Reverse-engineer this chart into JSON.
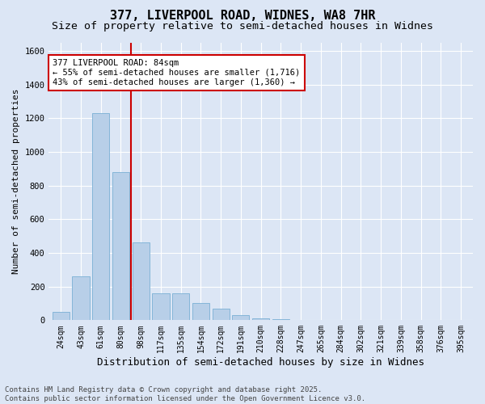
{
  "title_line1": "377, LIVERPOOL ROAD, WIDNES, WA8 7HR",
  "title_line2": "Size of property relative to semi-detached houses in Widnes",
  "xlabel": "Distribution of semi-detached houses by size in Widnes",
  "ylabel": "Number of semi-detached properties",
  "categories": [
    "24sqm",
    "43sqm",
    "61sqm",
    "80sqm",
    "98sqm",
    "117sqm",
    "135sqm",
    "154sqm",
    "172sqm",
    "191sqm",
    "210sqm",
    "228sqm",
    "247sqm",
    "265sqm",
    "284sqm",
    "302sqm",
    "321sqm",
    "339sqm",
    "358sqm",
    "376sqm",
    "395sqm"
  ],
  "values": [
    50,
    260,
    1230,
    880,
    460,
    160,
    160,
    100,
    70,
    30,
    10,
    5,
    0,
    0,
    0,
    0,
    0,
    0,
    0,
    0,
    0
  ],
  "bar_color": "#b8cfe8",
  "bar_edge_color": "#7aafd4",
  "vline_x": 3.5,
  "vline_color": "#cc0000",
  "annotation_text": "377 LIVERPOOL ROAD: 84sqm\n← 55% of semi-detached houses are smaller (1,716)\n43% of semi-detached houses are larger (1,360) →",
  "annotation_box_color": "#cc0000",
  "ylim": [
    0,
    1650
  ],
  "yticks": [
    0,
    200,
    400,
    600,
    800,
    1000,
    1200,
    1400,
    1600
  ],
  "bg_color": "#dce6f5",
  "plot_bg_color": "#dce6f5",
  "footer_line1": "Contains HM Land Registry data © Crown copyright and database right 2025.",
  "footer_line2": "Contains public sector information licensed under the Open Government Licence v3.0.",
  "title_fontsize": 11,
  "subtitle_fontsize": 9.5,
  "xlabel_fontsize": 9,
  "ylabel_fontsize": 8,
  "tick_fontsize": 7,
  "annotation_fontsize": 7.5,
  "footer_fontsize": 6.5
}
